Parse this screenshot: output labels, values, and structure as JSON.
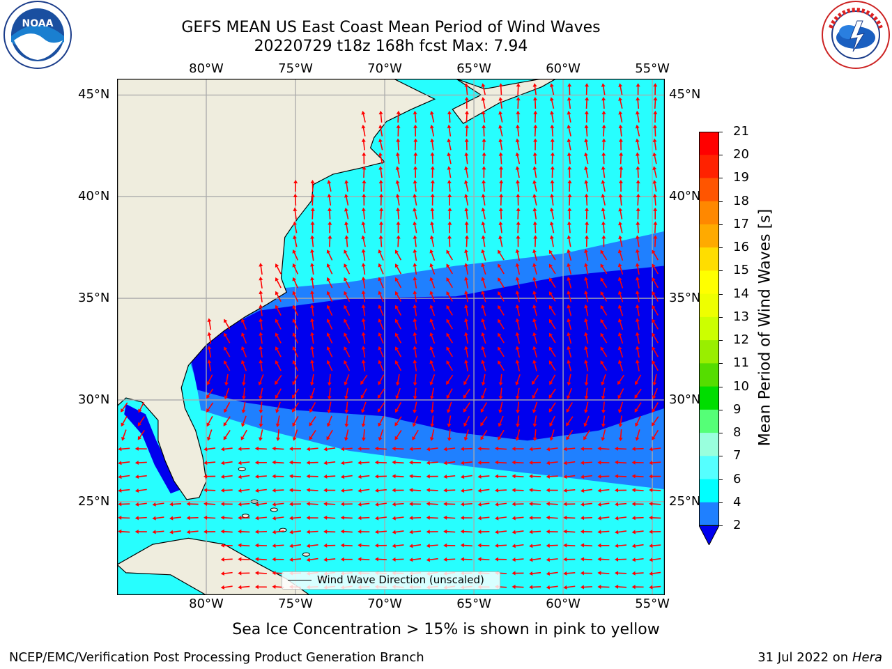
{
  "header": {
    "title_line1": "GEFS MEAN US East Coast Mean Period of Wind Waves",
    "title_line2": "20220729 t18z 168h fcst   Max: 7.94"
  },
  "logos": {
    "noaa": {
      "icon": "noaa-logo",
      "text": "NOAA",
      "ring_text": "NATIONAL OCEANIC AND ATMOSPHERIC ADMINISTRATION · U.S. DEPARTMENT OF COMMERCE"
    },
    "nws": {
      "icon": "nws-logo",
      "ring_text": "NATIONAL WEATHER SERVICE"
    }
  },
  "map": {
    "lon_ticks": [
      "80°W",
      "75°W",
      "70°W",
      "65°W",
      "60°W",
      "55°W"
    ],
    "lat_ticks": [
      "45°N",
      "40°N",
      "35°N",
      "30°N",
      "25°N"
    ],
    "lon_values": [
      -80,
      -75,
      -70,
      -65,
      -60,
      -55
    ],
    "lat_values": [
      45,
      40,
      35,
      30,
      25
    ],
    "lon_range": [
      -85,
      -54.3
    ],
    "lat_range": [
      20.4,
      45.8
    ],
    "legend_text": "Wind Wave Direction (unscaled)",
    "colors": {
      "land": "#efedde",
      "ocean_light": "#27fefe",
      "ocean_mid": "#1f80ff",
      "ocean_dark": "#0000ee",
      "ocean_pale": "#55fdfb",
      "arrow": "#ff0000",
      "grid": "#aaaaaa"
    }
  },
  "colorbar": {
    "label": "Mean Period of Wind Waves [s]",
    "ticks": [
      "21",
      "20",
      "19",
      "18",
      "17",
      "16",
      "15",
      "14",
      "13",
      "12",
      "11",
      "10",
      "9",
      "8",
      "7",
      "6",
      "4",
      "2"
    ],
    "colors_top_to_bottom": [
      "#ff0000",
      "#ff2200",
      "#ff5500",
      "#ff8800",
      "#ffaa00",
      "#ffdd00",
      "#ffff00",
      "#eeff00",
      "#ccff00",
      "#99ee00",
      "#55dd00",
      "#00dd00",
      "#55ff77",
      "#99ffdd",
      "#55ffff",
      "#00ffff",
      "#1f80ff"
    ],
    "extend_color": "#0000ee"
  },
  "subtitle": "Sea Ice Concentration > 15% is shown in pink to yellow",
  "footer": {
    "left": "NCEP/EMC/Verification Post Processing Product Generation Branch",
    "right_date": "31 Jul 2022 on",
    "right_machine": "Hera"
  }
}
